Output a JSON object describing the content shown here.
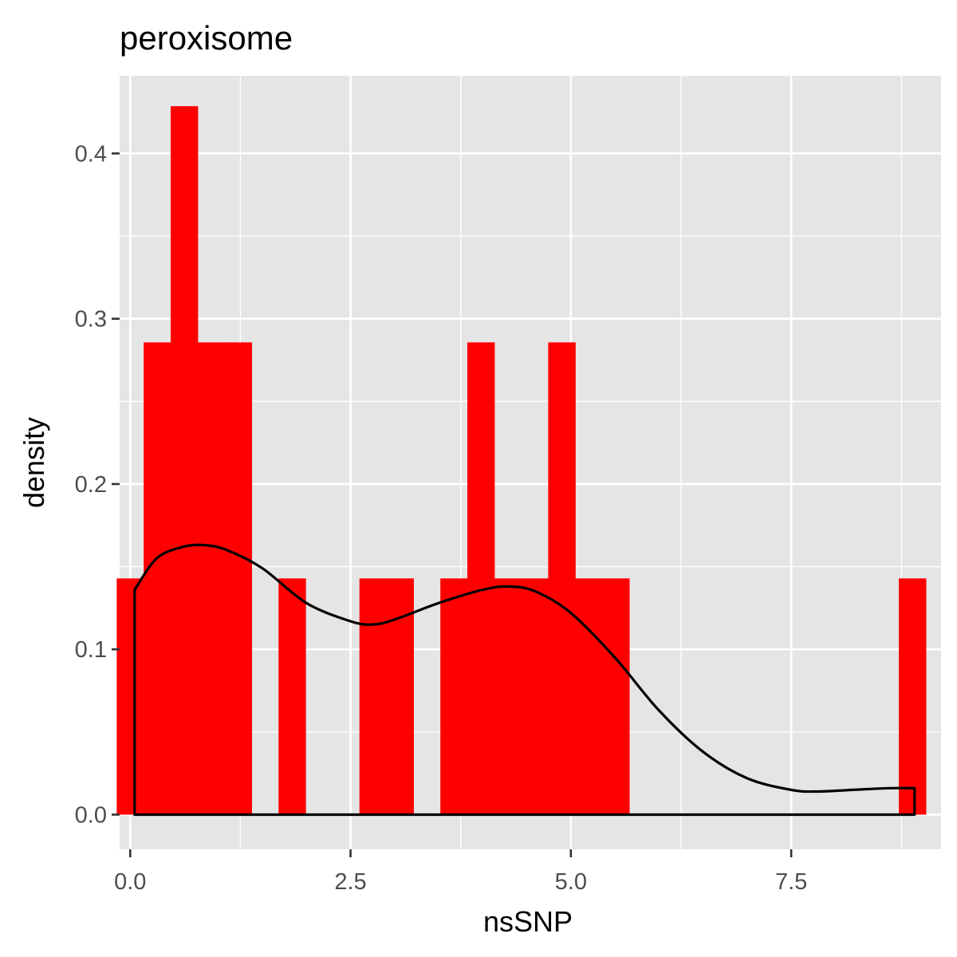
{
  "chart_data": {
    "type": "bar",
    "title": "peroxisome",
    "xlabel": "nsSNP",
    "ylabel": "density",
    "xlim": [
      -0.12,
      9.2
    ],
    "ylim": [
      -0.021,
      0.447
    ],
    "x_ticks": [
      0.0,
      2.5,
      5.0,
      7.5
    ],
    "x_tick_labels": [
      "0.0",
      "2.5",
      "5.0",
      "7.5"
    ],
    "y_ticks": [
      0.0,
      0.1,
      0.2,
      0.3,
      0.4
    ],
    "y_tick_labels": [
      "0.0",
      "0.1",
      "0.2",
      "0.3",
      "0.4"
    ],
    "grid": true,
    "bin_width": 0.306,
    "bins": [
      {
        "x0": -0.153,
        "x1": 0.153,
        "density": 0.1429
      },
      {
        "x0": 0.153,
        "x1": 0.459,
        "density": 0.2857
      },
      {
        "x0": 0.459,
        "x1": 0.765,
        "density": 0.4286
      },
      {
        "x0": 0.765,
        "x1": 1.071,
        "density": 0.2857
      },
      {
        "x0": 1.071,
        "x1": 1.377,
        "density": 0.2857
      },
      {
        "x0": 1.683,
        "x1": 1.989,
        "density": 0.1429
      },
      {
        "x0": 2.601,
        "x1": 2.907,
        "density": 0.1429
      },
      {
        "x0": 2.907,
        "x1": 3.213,
        "density": 0.1429
      },
      {
        "x0": 3.519,
        "x1": 3.825,
        "density": 0.1429
      },
      {
        "x0": 3.825,
        "x1": 4.131,
        "density": 0.2857
      },
      {
        "x0": 4.131,
        "x1": 4.437,
        "density": 0.1429
      },
      {
        "x0": 4.437,
        "x1": 4.743,
        "density": 0.1429
      },
      {
        "x0": 4.743,
        "x1": 5.049,
        "density": 0.2857
      },
      {
        "x0": 5.049,
        "x1": 5.355,
        "density": 0.1429
      },
      {
        "x0": 5.355,
        "x1": 5.661,
        "density": 0.1429
      },
      {
        "x0": 8.721,
        "x1": 9.027,
        "density": 0.1429
      }
    ],
    "density_curve": {
      "x": [
        0.05,
        0.3,
        0.6,
        0.85,
        1.1,
        1.5,
        2.0,
        2.5,
        2.75,
        3.0,
        3.5,
        4.0,
        4.3,
        4.6,
        5.0,
        5.5,
        6.0,
        6.5,
        7.0,
        7.5,
        7.8,
        8.2,
        8.6,
        8.9
      ],
      "y": [
        0.136,
        0.155,
        0.162,
        0.163,
        0.16,
        0.149,
        0.128,
        0.117,
        0.115,
        0.118,
        0.128,
        0.136,
        0.138,
        0.135,
        0.122,
        0.095,
        0.063,
        0.038,
        0.022,
        0.015,
        0.014,
        0.015,
        0.016,
        0.016
      ]
    },
    "colors": {
      "bar_fill": "#ff0000",
      "curve": "#000000",
      "panel_background": "#e5e5e5",
      "grid": "#ffffff"
    }
  }
}
